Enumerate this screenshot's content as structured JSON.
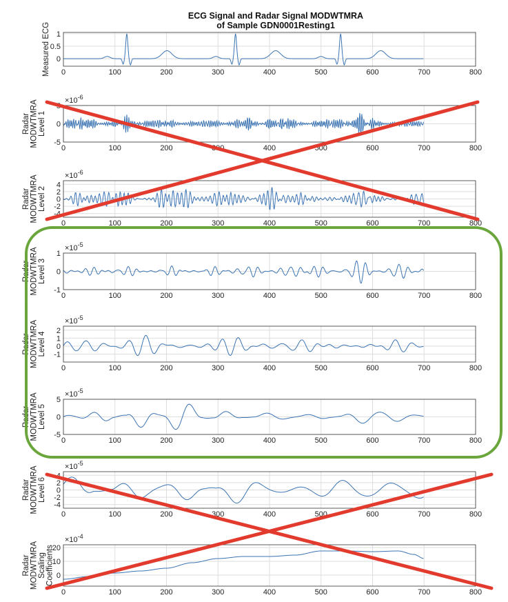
{
  "figure": {
    "title_line1": "ECG Signal and Radar Signal MODWTMRA",
    "title_line2": "of Sample GDN0001Resting1"
  },
  "colors": {
    "line": "#3a73b3",
    "grid": "#dedede",
    "axis": "#333333",
    "cross": "#e23b2e",
    "highlight": "#6aa63c"
  },
  "annotations": {
    "crossed_panels": [
      1,
      2,
      6,
      7
    ],
    "highlighted_panels": [
      3,
      4,
      5
    ]
  },
  "chart_data": [
    {
      "type": "line",
      "ylabel": [
        "Measured ECG"
      ],
      "exponent": "",
      "xlim": [
        0,
        800
      ],
      "ylim": [
        -0.3,
        1.05
      ],
      "xticks": [
        0,
        100,
        200,
        300,
        400,
        500,
        600,
        700,
        800
      ],
      "yticks": [
        {
          "v": 1,
          "label": "1"
        },
        {
          "v": 0.5,
          "label": "0.5"
        },
        {
          "v": 0,
          "label": "0"
        }
      ],
      "series": [
        {
          "gen": "ecg",
          "n": 700,
          "beats": [
            123,
            334,
            538
          ],
          "amp": 1.0
        }
      ]
    },
    {
      "type": "line",
      "ylabel": [
        "Radar",
        "MODWTMRA",
        "Level 1"
      ],
      "exponent": "-6",
      "xlim": [
        0,
        800
      ],
      "ylim": [
        -5,
        5
      ],
      "xticks": [
        0,
        100,
        200,
        300,
        400,
        500,
        600,
        700,
        800
      ],
      "yticks": [
        {
          "v": 5,
          "label": "5"
        },
        {
          "v": 0,
          "label": "0"
        },
        {
          "v": -5,
          "label": "-5"
        }
      ],
      "series": [
        {
          "gen": "noise",
          "n": 700,
          "seed": 11,
          "amp": 3.0,
          "period": 4.5
        }
      ]
    },
    {
      "type": "line",
      "ylabel": [
        "Radar",
        "MODWTMRA",
        "Level 2"
      ],
      "exponent": "-6",
      "xlim": [
        0,
        800
      ],
      "ylim": [
        -5,
        5
      ],
      "xticks": [
        0,
        100,
        200,
        300,
        400,
        500,
        600,
        700,
        800
      ],
      "yticks": [
        {
          "v": 4,
          "label": "4"
        },
        {
          "v": 2,
          "label": "2"
        },
        {
          "v": 0,
          "label": "0"
        },
        {
          "v": -2,
          "label": "-2"
        },
        {
          "v": -4,
          "label": "-4"
        }
      ],
      "series": [
        {
          "gen": "noise",
          "n": 700,
          "seed": 23,
          "amp": 3.2,
          "period": 9
        }
      ]
    },
    {
      "type": "line",
      "ylabel": [
        "Radar",
        "MODWTMRA",
        "Level 3"
      ],
      "exponent": "-5",
      "xlim": [
        0,
        800
      ],
      "ylim": [
        -1,
        1
      ],
      "xticks": [
        0,
        100,
        200,
        300,
        400,
        500,
        600,
        700,
        800
      ],
      "yticks": [
        {
          "v": 1,
          "label": "1"
        },
        {
          "v": 0,
          "label": "0"
        },
        {
          "v": -1,
          "label": "-1"
        }
      ],
      "series": [
        {
          "gen": "noise",
          "n": 700,
          "seed": 37,
          "amp": 0.65,
          "period": 18
        }
      ]
    },
    {
      "type": "line",
      "ylabel": [
        "Radar",
        "MODWTMRA",
        "Level 4"
      ],
      "exponent": "-5",
      "xlim": [
        0,
        800
      ],
      "ylim": [
        -2,
        2.5
      ],
      "xticks": [
        0,
        100,
        200,
        300,
        400,
        500,
        600,
        700,
        800
      ],
      "yticks": [
        {
          "v": 2,
          "label": "2"
        },
        {
          "v": 1,
          "label": "1"
        },
        {
          "v": 0,
          "label": "0"
        },
        {
          "v": -1,
          "label": "-1"
        }
      ],
      "series": [
        {
          "gen": "noise",
          "n": 700,
          "seed": 41,
          "amp": 1.35,
          "period": 34
        }
      ]
    },
    {
      "type": "line",
      "ylabel": [
        "Radar",
        "MODWTMRA",
        "Level 5"
      ],
      "exponent": "-5",
      "xlim": [
        0,
        800
      ],
      "ylim": [
        -5,
        5
      ],
      "xticks": [
        0,
        100,
        200,
        300,
        400,
        500,
        600,
        700,
        800
      ],
      "yticks": [
        {
          "v": 5,
          "label": "5"
        },
        {
          "v": 0,
          "label": "0"
        },
        {
          "v": -5,
          "label": "-5"
        }
      ],
      "series": [
        {
          "gen": "noise",
          "n": 700,
          "seed": 53,
          "amp": 3.6,
          "period": 66
        }
      ]
    },
    {
      "type": "line",
      "ylabel": [
        "Radar",
        "MODWTMRA",
        "Level 6"
      ],
      "exponent": "-5",
      "xlim": [
        0,
        800
      ],
      "ylim": [
        -5,
        5
      ],
      "xticks": [
        0,
        100,
        200,
        300,
        400,
        500,
        600,
        700,
        800
      ],
      "yticks": [
        {
          "v": 4,
          "label": "4"
        },
        {
          "v": 2,
          "label": "2"
        },
        {
          "v": 0,
          "label": "0"
        },
        {
          "v": -2,
          "label": "-2"
        },
        {
          "v": -4,
          "label": "-4"
        }
      ],
      "series": [
        {
          "gen": "noise",
          "n": 700,
          "seed": 67,
          "amp": 3.6,
          "period": 105
        }
      ]
    },
    {
      "type": "line",
      "ylabel": [
        "Radar",
        "MODWTMRA",
        "Scaling",
        "Coefficients"
      ],
      "exponent": "-4",
      "xlim": [
        0,
        800
      ],
      "ylim": [
        -8,
        22
      ],
      "xticks": [
        0,
        100,
        200,
        300,
        400,
        500,
        600,
        700,
        800
      ],
      "yticks": [
        {
          "v": 20,
          "label": "20"
        },
        {
          "v": 10,
          "label": "10"
        },
        {
          "v": 0,
          "label": "0"
        }
      ],
      "series": [
        {
          "gen": "trend",
          "n": 700,
          "points": [
            [
              0,
              -3
            ],
            [
              50,
              -1
            ],
            [
              100,
              1.5
            ],
            [
              150,
              3
            ],
            [
              200,
              5
            ],
            [
              250,
              9
            ],
            [
              300,
              12
            ],
            [
              350,
              13.5
            ],
            [
              400,
              13.5
            ],
            [
              450,
              14.5
            ],
            [
              500,
              17.5
            ],
            [
              550,
              17.5
            ],
            [
              600,
              17
            ],
            [
              650,
              17.5
            ],
            [
              680,
              15
            ],
            [
              700,
              12
            ]
          ]
        }
      ]
    }
  ]
}
